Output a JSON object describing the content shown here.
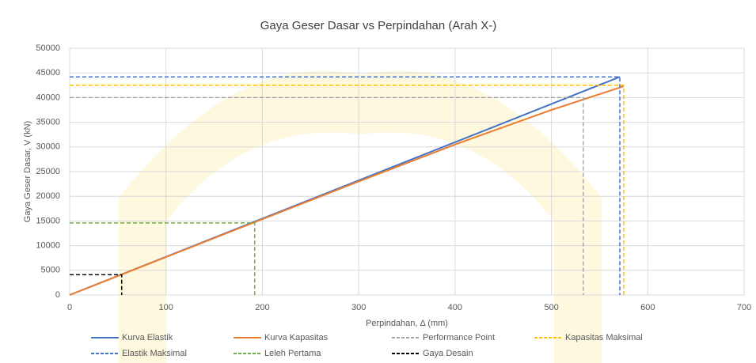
{
  "chart_data": {
    "type": "line",
    "title": "Gaya Geser Dasar vs Perpindahan (Arah X-)",
    "x_label": "Perpindahan, Δ (mm)",
    "y_label": "Gaya Geser Dasar, V (kN)",
    "xlim": [
      0,
      700
    ],
    "xticks": [
      0,
      100,
      200,
      300,
      400,
      500,
      600,
      700
    ],
    "ylim": [
      0,
      50000
    ],
    "yticks": [
      0,
      5000,
      10000,
      15000,
      20000,
      25000,
      30000,
      35000,
      40000,
      45000,
      50000
    ],
    "grid": true,
    "legend": "bottom",
    "series": [
      {
        "name": "Kurva Elastik",
        "color": "#4472c4",
        "dashed": false,
        "x": [
          0,
          571
        ],
        "values": [
          0,
          44200
        ]
      },
      {
        "name": "Kurva Kapasitas",
        "color": "#ed7d31",
        "dashed": false,
        "x": [
          0,
          190,
          300,
          400,
          500,
          575
        ],
        "values": [
          0,
          14600,
          23000,
          30500,
          37500,
          42300
        ]
      },
      {
        "name": "Performance Point",
        "color": "#a5a5a5",
        "dashed": true,
        "x": [
          0,
          533,
          533
        ],
        "values": [
          40000,
          40000,
          0
        ]
      },
      {
        "name": "Kapasitas Maksimal",
        "color": "#ffc000",
        "dashed": true,
        "x": [
          0,
          575,
          575
        ],
        "values": [
          42500,
          42500,
          0
        ]
      },
      {
        "name": "Elastik Maksimal",
        "color": "#4472c4",
        "dashed": true,
        "x": [
          0,
          571,
          571
        ],
        "values": [
          44200,
          44200,
          0
        ]
      },
      {
        "name": "Leleh Pertama",
        "color": "#70ad47",
        "dashed": true,
        "x": [
          0,
          192,
          192
        ],
        "values": [
          14600,
          14600,
          0
        ]
      },
      {
        "name": "Gaya Desain",
        "color": "#000000",
        "dashed": true,
        "x": [
          0,
          54,
          54
        ],
        "values": [
          4100,
          4100,
          0
        ]
      }
    ]
  }
}
